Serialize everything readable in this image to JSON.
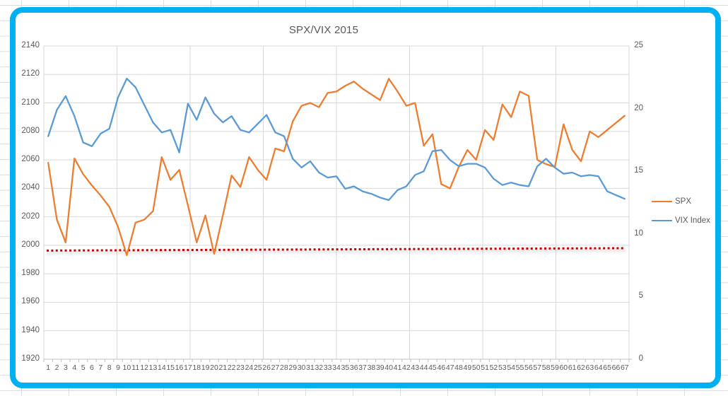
{
  "frame": {
    "border_color": "#00B0F0"
  },
  "chart_data": {
    "type": "line",
    "title": "SPX/VIX 2015",
    "legend_position": "right",
    "grid": true,
    "x_categories": [
      1,
      2,
      3,
      4,
      5,
      6,
      7,
      8,
      9,
      10,
      11,
      12,
      13,
      14,
      15,
      16,
      17,
      18,
      19,
      20,
      21,
      22,
      23,
      24,
      25,
      26,
      27,
      28,
      29,
      30,
      31,
      32,
      33,
      34,
      35,
      36,
      37,
      38,
      39,
      40,
      41,
      42,
      43,
      44,
      45,
      46,
      47,
      48,
      49,
      50,
      51,
      52,
      53,
      54,
      55,
      56,
      57,
      58,
      59,
      60,
      61,
      62,
      63,
      64,
      65,
      66,
      67
    ],
    "left_axis": {
      "min": 1920,
      "max": 2140,
      "step": 20,
      "ticks": [
        1920,
        1940,
        1960,
        1980,
        2000,
        2020,
        2040,
        2060,
        2080,
        2100,
        2120,
        2140
      ]
    },
    "right_axis": {
      "min": 0,
      "max": 25,
      "step": 5,
      "ticks": [
        0,
        5,
        10,
        15,
        20,
        25
      ]
    },
    "series": [
      {
        "name": "SPX",
        "axis": "left",
        "color": "#ED7D31",
        "values": [
          2058,
          2018,
          2002,
          2061,
          2050,
          2042,
          2035,
          2027,
          2013,
          1993,
          2016,
          2018,
          2024,
          2062,
          2046,
          2053,
          2028,
          2002,
          2021,
          1994,
          2021,
          2049,
          2041,
          2062,
          2053,
          2046,
          2068,
          2066,
          2087,
          2098,
          2100,
          2097,
          2107,
          2108,
          2112,
          2115,
          2110,
          2106,
          2102,
          2117,
          2108,
          2098,
          2100,
          2070,
          2078,
          2043,
          2040,
          2055,
          2067,
          2060,
          2081,
          2074,
          2099,
          2090,
          2108,
          2105,
          2060,
          2057,
          2055,
          2085,
          2067,
          2059,
          2080,
          2076,
          2081,
          2086,
          2091
        ]
      },
      {
        "name": "VIX Index",
        "axis": "right",
        "color": "#5B9BD5",
        "values": [
          17.8,
          19.9,
          21.0,
          19.4,
          17.3,
          17.0,
          18.0,
          18.4,
          20.9,
          22.4,
          21.7,
          20.3,
          18.9,
          18.1,
          18.3,
          16.5,
          20.4,
          19.1,
          20.9,
          19.6,
          18.9,
          19.4,
          18.3,
          18.1,
          18.8,
          19.5,
          18.1,
          17.8,
          16.0,
          15.3,
          15.8,
          14.9,
          14.5,
          14.6,
          13.6,
          13.8,
          13.4,
          13.2,
          12.9,
          12.7,
          13.5,
          13.8,
          14.7,
          15.0,
          16.6,
          16.7,
          15.9,
          15.4,
          15.6,
          15.6,
          15.3,
          14.4,
          13.9,
          14.1,
          13.9,
          13.8,
          15.4,
          16.0,
          15.3,
          14.8,
          14.9,
          14.6,
          14.7,
          14.6,
          13.4,
          13.1,
          12.8
        ]
      }
    ],
    "trendline": {
      "name": "red-dotted-level-line",
      "axis": "left",
      "style": "dotted",
      "color": "#C80000",
      "from": 1996.3,
      "to": 1998.0
    },
    "colors": {
      "gridline": "#D9D9D9",
      "axis_line": "#BFBFBF",
      "text": "#595959"
    }
  },
  "legend": {
    "items": [
      {
        "label": "SPX",
        "color": "#ED7D31"
      },
      {
        "label": "VIX Index",
        "color": "#5B9BD5"
      }
    ]
  }
}
